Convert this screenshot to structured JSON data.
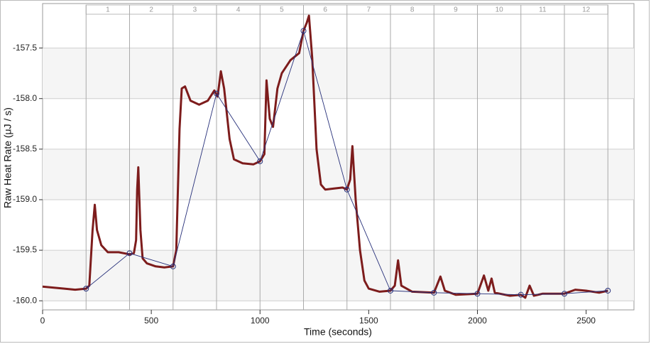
{
  "chart_data": {
    "type": "line",
    "x_label": "Time (seconds)",
    "y_label": "Raw Heat Rate (μJ / s)",
    "xlim": [
      0,
      2720
    ],
    "ylim": [
      -160.09,
      -157.06
    ],
    "xticks": [
      0,
      500,
      1000,
      1500,
      2000,
      2500
    ],
    "yticks": [
      -157.5,
      {
        "value": -158,
        "label": "-158.0"
      },
      -158.5,
      {
        "value": -159,
        "label": "-159.0"
      },
      -159.5,
      {
        "value": -160,
        "label": "-160.0"
      }
    ],
    "banded_grid": true,
    "injection_times": [
      200,
      400,
      600,
      800,
      1000,
      1200,
      1400,
      1600,
      1800,
      2000,
      2200,
      2400,
      2600
    ],
    "injection_labels": [
      "1",
      "2",
      "3",
      "4",
      "5",
      "6",
      "7",
      "8",
      "9",
      "10",
      "11",
      "12"
    ],
    "series": [
      {
        "color": "#7d1c1c",
        "x": [
          0,
          100,
          150,
          200,
          215,
          230,
          240,
          250,
          270,
          300,
          350,
          400,
          420,
          430,
          435,
          440,
          450,
          460,
          480,
          520,
          560,
          600,
          615,
          630,
          640,
          655,
          680,
          720,
          760,
          790,
          805,
          820,
          835,
          860,
          880,
          920,
          970,
          1000,
          1020,
          1030,
          1045,
          1060,
          1080,
          1100,
          1140,
          1180,
          1200,
          1215,
          1225,
          1240,
          1260,
          1280,
          1300,
          1340,
          1380,
          1400,
          1415,
          1425,
          1440,
          1460,
          1480,
          1500,
          1550,
          1600,
          1620,
          1635,
          1650,
          1700,
          1800,
          1830,
          1850,
          1900,
          2000,
          2030,
          2050,
          2065,
          2080,
          2150,
          2200,
          2220,
          2240,
          2260,
          2300,
          2400,
          2450,
          2500,
          2560,
          2600
        ],
        "values": [
          -159.86,
          -159.88,
          -159.89,
          -159.88,
          -159.85,
          -159.3,
          -159.05,
          -159.3,
          -159.45,
          -159.52,
          -159.52,
          -159.54,
          -159.53,
          -159.4,
          -158.9,
          -158.68,
          -159.3,
          -159.58,
          -159.63,
          -159.66,
          -159.67,
          -159.66,
          -159.5,
          -158.3,
          -157.9,
          -157.88,
          -158.02,
          -158.06,
          -158.02,
          -157.92,
          -157.98,
          -157.73,
          -157.9,
          -158.4,
          -158.6,
          -158.64,
          -158.65,
          -158.62,
          -158.55,
          -157.82,
          -158.2,
          -158.28,
          -157.9,
          -157.75,
          -157.62,
          -157.55,
          -157.33,
          -157.25,
          -157.18,
          -157.6,
          -158.5,
          -158.85,
          -158.9,
          -158.89,
          -158.88,
          -158.9,
          -158.8,
          -158.47,
          -159.0,
          -159.5,
          -159.8,
          -159.88,
          -159.91,
          -159.9,
          -159.85,
          -159.6,
          -159.85,
          -159.91,
          -159.92,
          -159.76,
          -159.9,
          -159.94,
          -159.93,
          -159.75,
          -159.9,
          -159.78,
          -159.92,
          -159.95,
          -159.94,
          -159.97,
          -159.85,
          -159.95,
          -159.93,
          -159.93,
          -159.89,
          -159.9,
          -159.92,
          -159.9
        ]
      },
      {
        "color": "#27307a",
        "markers": true,
        "x": [
          200,
          400,
          600,
          800,
          1000,
          1200,
          1400,
          1600,
          1800,
          2000,
          2200,
          2400,
          2600
        ],
        "values": [
          -159.88,
          -159.53,
          -159.66,
          -157.95,
          -158.62,
          -157.33,
          -158.9,
          -159.9,
          -159.92,
          -159.93,
          -159.94,
          -159.93,
          -159.9
        ]
      }
    ]
  }
}
